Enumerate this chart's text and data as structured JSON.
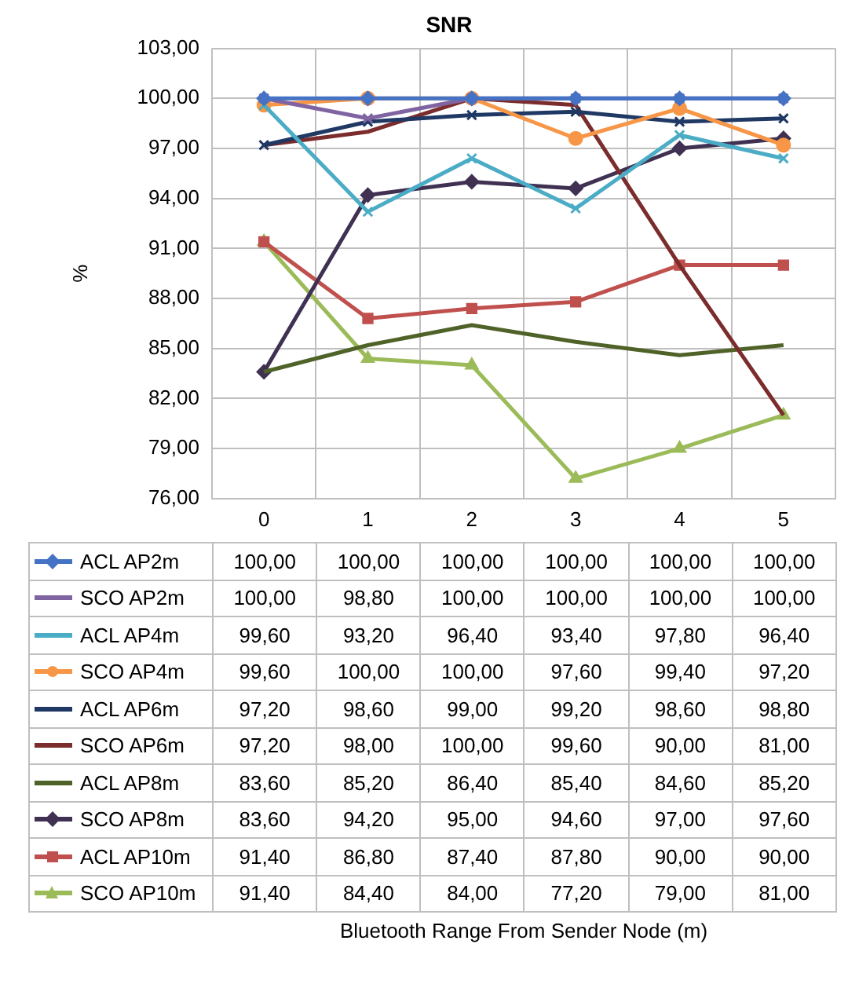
{
  "chart_data": {
    "type": "line",
    "title": "SNR",
    "ylabel": "%",
    "annotations": [
      "Bluetooth Range From Sender Node (m)"
    ],
    "categories": [
      "0",
      "1",
      "2",
      "3",
      "4",
      "5"
    ],
    "ylim": [
      76,
      103
    ],
    "yticks": [
      {
        "value": 76,
        "label": "76,00"
      },
      {
        "value": 79,
        "label": "79,00"
      },
      {
        "value": 82,
        "label": "82,00"
      },
      {
        "value": 85,
        "label": "85,00"
      },
      {
        "value": 88,
        "label": "88,00"
      },
      {
        "value": 91,
        "label": "91,00"
      },
      {
        "value": 94,
        "label": "94,00"
      },
      {
        "value": 97,
        "label": "97,00"
      },
      {
        "value": 100,
        "label": "100,00"
      },
      {
        "value": 103,
        "label": "103,00"
      }
    ],
    "grid": true,
    "legend": "bottom",
    "line_style": "solid",
    "series": [
      {
        "name": "ACL AP2m",
        "color": "#4472c4",
        "marker": "diamond",
        "values": [
          100,
          100,
          100,
          100,
          100,
          100
        ],
        "value_labels": [
          "100,00",
          "100,00",
          "100,00",
          "100,00",
          "100,00",
          "100,00"
        ]
      },
      {
        "name": "SCO AP2m",
        "color": "#8064a2",
        "marker": "cross",
        "values": [
          100,
          98.8,
          100,
          100,
          100,
          100
        ],
        "value_labels": [
          "100,00",
          "98,80",
          "100,00",
          "100,00",
          "100,00",
          "100,00"
        ]
      },
      {
        "name": "ACL AP4m",
        "color": "#4bacc6",
        "marker": "cross",
        "values": [
          99.6,
          93.2,
          96.4,
          93.4,
          97.8,
          96.4
        ],
        "value_labels": [
          "99,60",
          "93,20",
          "96,40",
          "93,40",
          "97,80",
          "96,40"
        ]
      },
      {
        "name": "SCO AP4m",
        "color": "#f79646",
        "marker": "circle",
        "values": [
          99.6,
          100,
          100,
          97.6,
          99.4,
          97.2
        ],
        "value_labels": [
          "99,60",
          "100,00",
          "100,00",
          "97,60",
          "99,40",
          "97,20"
        ]
      },
      {
        "name": "ACL AP6m",
        "color": "#1f3864",
        "marker": "cross",
        "values": [
          97.2,
          98.6,
          99,
          99.2,
          98.6,
          98.8
        ],
        "value_labels": [
          "97,20",
          "98,60",
          "99,00",
          "99,20",
          "98,60",
          "98,80"
        ]
      },
      {
        "name": "SCO AP6m",
        "color": "#7b2c2c",
        "marker": "none",
        "values": [
          97.2,
          98,
          100,
          99.6,
          90,
          81
        ],
        "value_labels": [
          "97,20",
          "98,00",
          "100,00",
          "99,60",
          "90,00",
          "81,00"
        ]
      },
      {
        "name": "ACL AP8m",
        "color": "#4f6228",
        "marker": "none",
        "values": [
          83.6,
          85.2,
          86.4,
          85.4,
          84.6,
          85.2
        ],
        "value_labels": [
          "83,60",
          "85,20",
          "86,40",
          "85,40",
          "84,60",
          "85,20"
        ]
      },
      {
        "name": "SCO AP8m",
        "color": "#403152",
        "marker": "diamond",
        "values": [
          83.6,
          94.2,
          95,
          94.6,
          97,
          97.6
        ],
        "value_labels": [
          "83,60",
          "94,20",
          "95,00",
          "94,60",
          "97,00",
          "97,60"
        ]
      },
      {
        "name": "ACL AP10m",
        "color": "#c0504d",
        "marker": "square",
        "values": [
          91.4,
          86.8,
          87.4,
          87.8,
          90,
          90
        ],
        "value_labels": [
          "91,40",
          "86,80",
          "87,40",
          "87,80",
          "90,00",
          "90,00"
        ]
      },
      {
        "name": "SCO AP10m",
        "color": "#9bbb59",
        "marker": "triangle",
        "values": [
          91.4,
          84.4,
          84,
          77.2,
          79,
          81
        ],
        "value_labels": [
          "91,40",
          "84,40",
          "84,00",
          "77,20",
          "79,00",
          "81,00"
        ]
      }
    ]
  }
}
